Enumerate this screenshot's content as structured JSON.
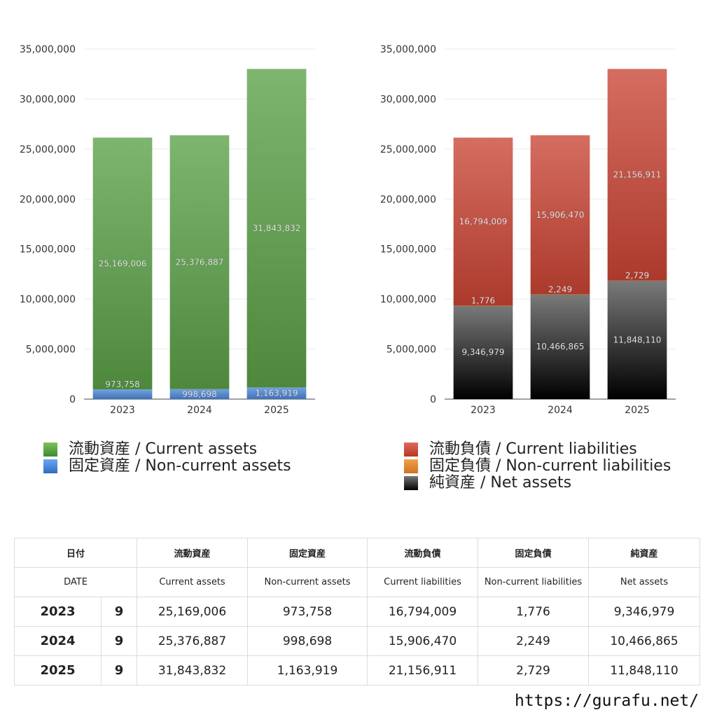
{
  "chart_data": [
    {
      "type": "bar",
      "stacked": true,
      "categories": [
        "2023",
        "2024",
        "2025"
      ],
      "ylim": [
        0,
        35000000
      ],
      "yticks": [
        "0",
        "5,000,000",
        "10,000,000",
        "15,000,000",
        "20,000,000",
        "25,000,000",
        "30,000,000",
        "35,000,000"
      ],
      "grid": true,
      "series": [
        {
          "name": "固定資産 / Non-current assets",
          "values": [
            973758,
            998698,
            1163919
          ],
          "labels": [
            "973,758",
            "998,698",
            "1,163,919"
          ],
          "color": "#4a86d6"
        },
        {
          "name": "流動資産 / Current assets",
          "values": [
            25169006,
            25376887,
            31843832
          ],
          "labels": [
            "25,169,006",
            "25,376,887",
            "31,843,832"
          ],
          "color": "#5aa046"
        }
      ]
    },
    {
      "type": "bar",
      "stacked": true,
      "categories": [
        "2023",
        "2024",
        "2025"
      ],
      "ylim": [
        0,
        35000000
      ],
      "yticks": [
        "0",
        "5,000,000",
        "10,000,000",
        "15,000,000",
        "20,000,000",
        "25,000,000",
        "30,000,000",
        "35,000,000"
      ],
      "grid": true,
      "series": [
        {
          "name": "純資産 / Net assets",
          "values": [
            9346979,
            10466865,
            11848110
          ],
          "labels": [
            "9,346,979",
            "10,466,865",
            "11,848,110"
          ],
          "color": "#333333"
        },
        {
          "name": "固定負債 / Non-current liabilities",
          "values": [
            1776,
            2249,
            2729
          ],
          "labels": [
            "1,776",
            "2,249",
            "2,729"
          ],
          "color": "#e0892f"
        },
        {
          "name": "流動負債 / Current liabilities",
          "values": [
            16794009,
            15906470,
            21156911
          ],
          "labels": [
            "16,794,009",
            "15,906,470",
            "21,156,911"
          ],
          "color": "#c94434"
        }
      ]
    }
  ],
  "legend_left": [
    {
      "label": "流動資産 / Current assets",
      "color": "#5aa046"
    },
    {
      "label": "固定資産 / Non-current assets",
      "color": "#4a86d6"
    }
  ],
  "legend_right": [
    {
      "label": "流動負債 / Current liabilities",
      "color": "#c94434"
    },
    {
      "label": "固定負債 / Non-current liabilities",
      "color": "#e0892f"
    },
    {
      "label": "純資産 / Net assets",
      "color": "#333333"
    }
  ],
  "table": {
    "header_jp": [
      "日付",
      "流動資産",
      "固定資産",
      "流動負債",
      "固定負債",
      "純資産"
    ],
    "header_en": [
      "DATE",
      "Current assets",
      "Non-current assets",
      "Current liabilities",
      "Non-current liabilities",
      "Net assets"
    ],
    "rows": [
      {
        "year": "2023",
        "count": "9",
        "values": [
          "25,169,006",
          "973,758",
          "16,794,009",
          "1,776",
          "9,346,979"
        ]
      },
      {
        "year": "2024",
        "count": "9",
        "values": [
          "25,376,887",
          "998,698",
          "15,906,470",
          "2,249",
          "10,466,865"
        ]
      },
      {
        "year": "2025",
        "count": "9",
        "values": [
          "31,843,832",
          "1,163,919",
          "21,156,911",
          "2,729",
          "11,848,110"
        ]
      }
    ]
  },
  "site_url": "https://gurafu.net/"
}
